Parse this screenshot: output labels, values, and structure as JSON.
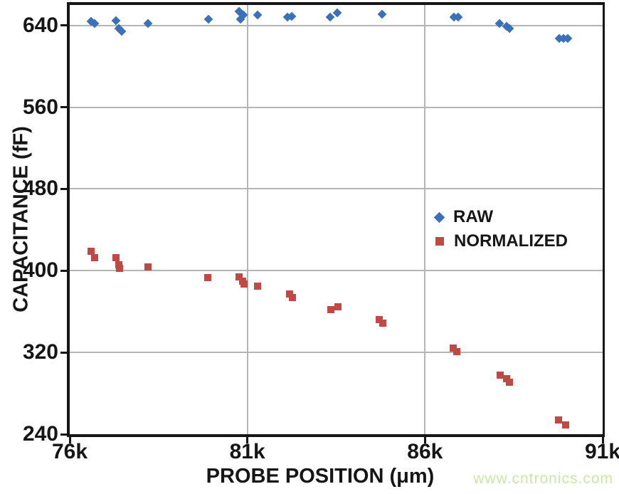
{
  "chart_data": {
    "type": "scatter",
    "title": "",
    "xlabel": "PROBE POSITION (μm)",
    "ylabel": "CAPACITANCE (fF)",
    "xlim": [
      76000,
      91000
    ],
    "ylim": [
      240,
      660
    ],
    "grid": true,
    "legend_position": "middle-right",
    "x_ticks": [
      {
        "value": 76000,
        "label": "76k"
      },
      {
        "value": 81000,
        "label": "81k"
      },
      {
        "value": 86000,
        "label": "86k"
      },
      {
        "value": 91000,
        "label": "91k"
      }
    ],
    "y_ticks": [
      {
        "value": 240,
        "label": "240"
      },
      {
        "value": 320,
        "label": "320"
      },
      {
        "value": 400,
        "label": "400"
      },
      {
        "value": 480,
        "label": "480"
      },
      {
        "value": 560,
        "label": "560"
      },
      {
        "value": 640,
        "label": "640"
      }
    ],
    "series": [
      {
        "name": "RAW",
        "marker": "diamond",
        "color": "#3b71b8",
        "points": [
          [
            76600,
            644
          ],
          [
            76700,
            642
          ],
          [
            77300,
            645
          ],
          [
            77380,
            637
          ],
          [
            77460,
            634
          ],
          [
            78200,
            642
          ],
          [
            79900,
            646
          ],
          [
            80770,
            654
          ],
          [
            80810,
            646
          ],
          [
            80890,
            650
          ],
          [
            81290,
            650
          ],
          [
            82130,
            648
          ],
          [
            82250,
            649
          ],
          [
            83330,
            648
          ],
          [
            83530,
            652
          ],
          [
            84790,
            651
          ],
          [
            86810,
            648
          ],
          [
            86930,
            648
          ],
          [
            88090,
            642
          ],
          [
            88290,
            639
          ],
          [
            88370,
            637
          ],
          [
            89780,
            627
          ],
          [
            89900,
            627
          ],
          [
            90020,
            627
          ]
        ]
      },
      {
        "name": "NORMALIZED",
        "marker": "square",
        "color": "#be4a46",
        "points": [
          [
            76600,
            419
          ],
          [
            76700,
            413
          ],
          [
            77300,
            413
          ],
          [
            77380,
            406
          ],
          [
            77400,
            402
          ],
          [
            78200,
            404
          ],
          [
            79880,
            393
          ],
          [
            80770,
            394
          ],
          [
            80870,
            390
          ],
          [
            80910,
            387
          ],
          [
            81290,
            385
          ],
          [
            82190,
            377
          ],
          [
            82270,
            374
          ],
          [
            83350,
            362
          ],
          [
            83550,
            365
          ],
          [
            84710,
            352
          ],
          [
            84810,
            349
          ],
          [
            86790,
            324
          ],
          [
            86890,
            321
          ],
          [
            88110,
            298
          ],
          [
            88290,
            294
          ],
          [
            88370,
            291
          ],
          [
            89760,
            254
          ],
          [
            89960,
            249
          ]
        ]
      }
    ]
  },
  "watermark": {
    "text": "www.cntronics.com",
    "color": "#cbe7a6"
  },
  "colors": {
    "axis": "#161616",
    "gridline": "#b5b5b5",
    "background": "#ffffff"
  }
}
